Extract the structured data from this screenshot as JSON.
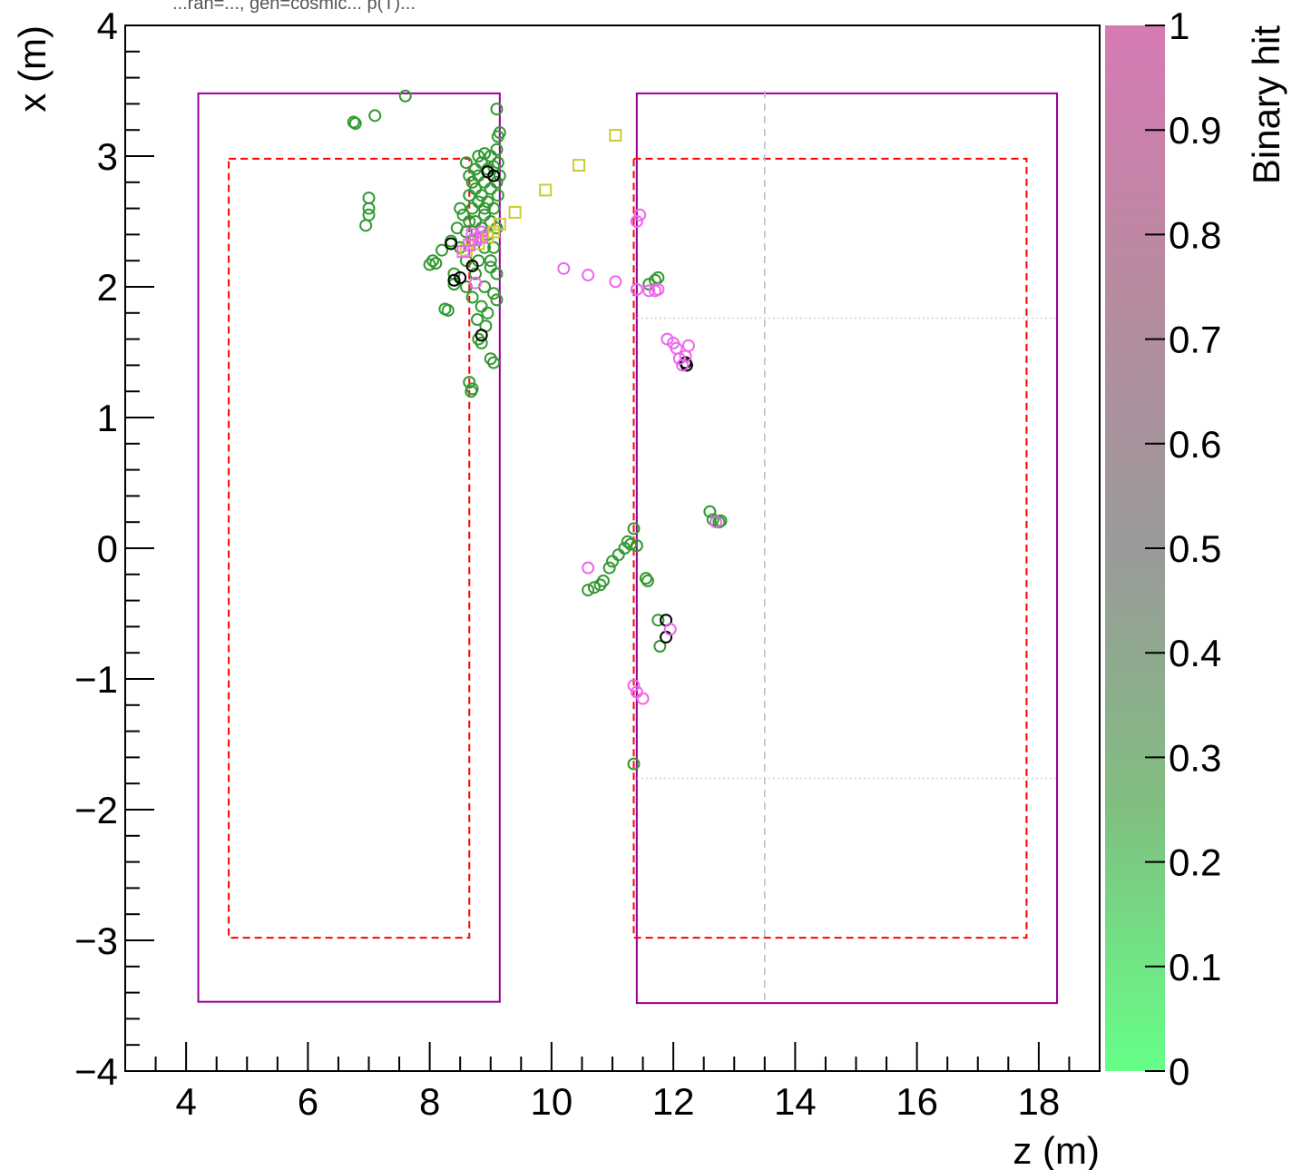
{
  "chart_data": {
    "type": "scatter",
    "top_caption": "...ran=..., gen=cosmic... p(T)...",
    "xlabel": "z (m)",
    "ylabel": "x (m)",
    "xlim": [
      3.0,
      19.0
    ],
    "ylim": [
      -4,
      4
    ],
    "x_ticks": [
      "4",
      "6",
      "8",
      "10",
      "12",
      "14",
      "16",
      "18"
    ],
    "y_ticks": [
      "−4",
      "−3",
      "−2",
      "−1",
      "0",
      "1",
      "2",
      "3",
      "4"
    ],
    "colorbar": {
      "title": "Binary hit",
      "range": [
        0,
        1
      ],
      "ticks": [
        "0",
        "0.1",
        "0.2",
        "0.3",
        "0.4",
        "0.5",
        "0.6",
        "0.7",
        "0.8",
        "0.9",
        "1"
      ],
      "colors": [
        "#66ff88",
        "#80bf80",
        "#9a9a9a",
        "#b88aa0",
        "#d67ab4"
      ]
    },
    "detector_outlines": [
      {
        "name": "outer-left",
        "z": [
          4.2,
          9.15
        ],
        "x": [
          -3.47,
          3.48
        ],
        "color": "#990099",
        "style": "solid"
      },
      {
        "name": "outer-right",
        "z": [
          11.4,
          18.3
        ],
        "x": [
          -3.48,
          3.48
        ],
        "color": "#990099",
        "style": "solid"
      },
      {
        "name": "inner-left",
        "z": [
          4.7,
          8.65
        ],
        "x": [
          -2.98,
          2.98
        ],
        "color": "#ff0000",
        "style": "dashed"
      },
      {
        "name": "inner-right",
        "z": [
          11.35,
          17.8
        ],
        "x": [
          -2.98,
          2.98
        ],
        "color": "#ff0000",
        "style": "dashed"
      }
    ],
    "guide_lines": [
      {
        "orientation": "vertical",
        "z": 13.5,
        "x": [
          -3.5,
          3.5
        ],
        "color": "#bbbbbb",
        "style": "dashed"
      },
      {
        "orientation": "horizontal",
        "x": 1.76,
        "z": [
          11.4,
          18.3
        ],
        "color": "#cccccc",
        "style": "dotted"
      },
      {
        "orientation": "horizontal",
        "x": -1.76,
        "z": [
          11.4,
          18.3
        ],
        "color": "#cccccc",
        "style": "dotted"
      }
    ],
    "series": [
      {
        "marker": "circle",
        "color": "#339933",
        "points": [
          [
            6.75,
            3.26
          ],
          [
            6.78,
            3.25
          ],
          [
            7.1,
            3.31
          ],
          [
            7.6,
            3.46
          ],
          [
            7.0,
            2.68
          ],
          [
            7.0,
            2.6
          ],
          [
            7.0,
            2.55
          ],
          [
            6.95,
            2.47
          ],
          [
            8.0,
            2.17
          ],
          [
            8.05,
            2.2
          ],
          [
            8.1,
            2.18
          ],
          [
            8.2,
            2.28
          ],
          [
            8.25,
            1.83
          ],
          [
            8.3,
            1.82
          ],
          [
            8.35,
            2.35
          ],
          [
            8.4,
            2.1
          ],
          [
            8.4,
            2.02
          ],
          [
            8.45,
            2.45
          ],
          [
            8.5,
            2.6
          ],
          [
            8.5,
            2.3
          ],
          [
            8.55,
            2.55
          ],
          [
            8.6,
            2.42
          ],
          [
            8.6,
            2.2
          ],
          [
            8.6,
            2.0
          ],
          [
            8.65,
            2.7
          ],
          [
            8.65,
            2.5
          ],
          [
            8.7,
            2.8
          ],
          [
            8.7,
            2.6
          ],
          [
            8.7,
            2.35
          ],
          [
            8.7,
            1.92
          ],
          [
            8.75,
            2.9
          ],
          [
            8.75,
            2.75
          ],
          [
            8.75,
            2.5
          ],
          [
            8.75,
            2.1
          ],
          [
            8.78,
            1.75
          ],
          [
            8.8,
            3.0
          ],
          [
            8.8,
            2.85
          ],
          [
            8.8,
            2.65
          ],
          [
            8.8,
            2.2
          ],
          [
            8.8,
            1.6
          ],
          [
            8.85,
            2.95
          ],
          [
            8.85,
            2.7
          ],
          [
            8.85,
            2.45
          ],
          [
            8.85,
            1.85
          ],
          [
            8.9,
            3.02
          ],
          [
            8.9,
            2.8
          ],
          [
            8.9,
            2.55
          ],
          [
            8.9,
            2.3
          ],
          [
            8.9,
            2.0
          ],
          [
            8.95,
            2.9
          ],
          [
            8.95,
            2.65
          ],
          [
            8.95,
            2.4
          ],
          [
            8.95,
            1.8
          ],
          [
            9.0,
            3.0
          ],
          [
            9.0,
            2.75
          ],
          [
            9.0,
            2.5
          ],
          [
            9.0,
            2.15
          ],
          [
            9.0,
            1.45
          ],
          [
            9.05,
            2.92
          ],
          [
            9.05,
            2.6
          ],
          [
            9.05,
            2.3
          ],
          [
            9.05,
            1.95
          ],
          [
            9.05,
            1.42
          ],
          [
            9.1,
            3.05
          ],
          [
            9.1,
            2.8
          ],
          [
            9.1,
            2.45
          ],
          [
            9.1,
            2.1
          ],
          [
            9.1,
            1.9
          ],
          [
            9.12,
            3.15
          ],
          [
            9.12,
            2.95
          ],
          [
            9.12,
            2.7
          ],
          [
            9.15,
            3.18
          ],
          [
            9.15,
            2.85
          ],
          [
            9.1,
            3.36
          ],
          [
            8.65,
            1.27
          ],
          [
            8.68,
            1.2
          ],
          [
            8.7,
            1.22
          ],
          [
            8.85,
            1.57
          ],
          [
            8.92,
            1.7
          ],
          [
            8.6,
            2.95
          ],
          [
            8.65,
            2.85
          ],
          [
            8.9,
            2.6
          ],
          [
            9.0,
            2.2
          ],
          [
            11.6,
            2.02
          ],
          [
            11.7,
            2.05
          ],
          [
            11.75,
            2.07
          ],
          [
            11.35,
            0.15
          ],
          [
            11.3,
            0.03
          ],
          [
            11.4,
            0.02
          ],
          [
            11.25,
            0.05
          ],
          [
            11.2,
            0.0
          ],
          [
            11.1,
            -0.05
          ],
          [
            11.0,
            -0.1
          ],
          [
            10.95,
            -0.15
          ],
          [
            10.85,
            -0.25
          ],
          [
            10.8,
            -0.28
          ],
          [
            10.7,
            -0.3
          ],
          [
            10.6,
            -0.32
          ],
          [
            11.55,
            -0.23
          ],
          [
            11.58,
            -0.25
          ],
          [
            11.75,
            -0.55
          ],
          [
            11.78,
            -0.75
          ],
          [
            11.35,
            -1.65
          ],
          [
            12.6,
            0.28
          ],
          [
            12.65,
            0.22
          ],
          [
            12.75,
            0.2
          ],
          [
            12.78,
            0.21
          ]
        ]
      },
      {
        "marker": "circle",
        "color": "#000000",
        "points": [
          [
            8.35,
            2.33
          ],
          [
            8.4,
            2.05
          ],
          [
            8.5,
            2.07
          ],
          [
            8.7,
            2.16
          ],
          [
            8.85,
            1.63
          ],
          [
            8.95,
            2.88
          ],
          [
            9.05,
            2.85
          ],
          [
            12.2,
            1.42
          ],
          [
            12.22,
            1.4
          ],
          [
            11.88,
            -0.55
          ],
          [
            11.88,
            -0.68
          ]
        ]
      },
      {
        "marker": "circle",
        "color": "#ee66ee",
        "points": [
          [
            8.75,
            2.03
          ],
          [
            8.8,
            2.38
          ],
          [
            8.85,
            2.42
          ],
          [
            11.45,
            2.55
          ],
          [
            11.4,
            2.5
          ],
          [
            10.2,
            2.14
          ],
          [
            10.6,
            2.09
          ],
          [
            11.05,
            2.04
          ],
          [
            11.4,
            1.98
          ],
          [
            11.6,
            1.97
          ],
          [
            11.7,
            1.97
          ],
          [
            11.75,
            1.98
          ],
          [
            11.9,
            1.6
          ],
          [
            12.0,
            1.57
          ],
          [
            12.05,
            1.53
          ],
          [
            12.1,
            1.45
          ],
          [
            12.2,
            1.47
          ],
          [
            12.25,
            1.55
          ],
          [
            12.15,
            1.4
          ],
          [
            10.6,
            -0.15
          ],
          [
            11.35,
            -1.05
          ],
          [
            11.4,
            -1.1
          ],
          [
            11.5,
            -1.15
          ],
          [
            11.95,
            -0.62
          ],
          [
            12.7,
            0.2
          ]
        ]
      },
      {
        "marker": "square",
        "color": "#cccc33",
        "points": [
          [
            11.05,
            3.16
          ],
          [
            10.45,
            2.93
          ],
          [
            9.9,
            2.74
          ],
          [
            9.4,
            2.57
          ],
          [
            9.15,
            2.48
          ],
          [
            9.05,
            2.42
          ],
          [
            8.95,
            2.38
          ],
          [
            8.8,
            2.33
          ],
          [
            8.6,
            2.28
          ]
        ]
      },
      {
        "marker": "square",
        "color": "#ee66ee",
        "points": [
          [
            8.55,
            2.27
          ],
          [
            8.65,
            2.32
          ],
          [
            8.75,
            2.36
          ],
          [
            8.85,
            2.38
          ],
          [
            8.7,
            2.4
          ]
        ]
      }
    ]
  }
}
